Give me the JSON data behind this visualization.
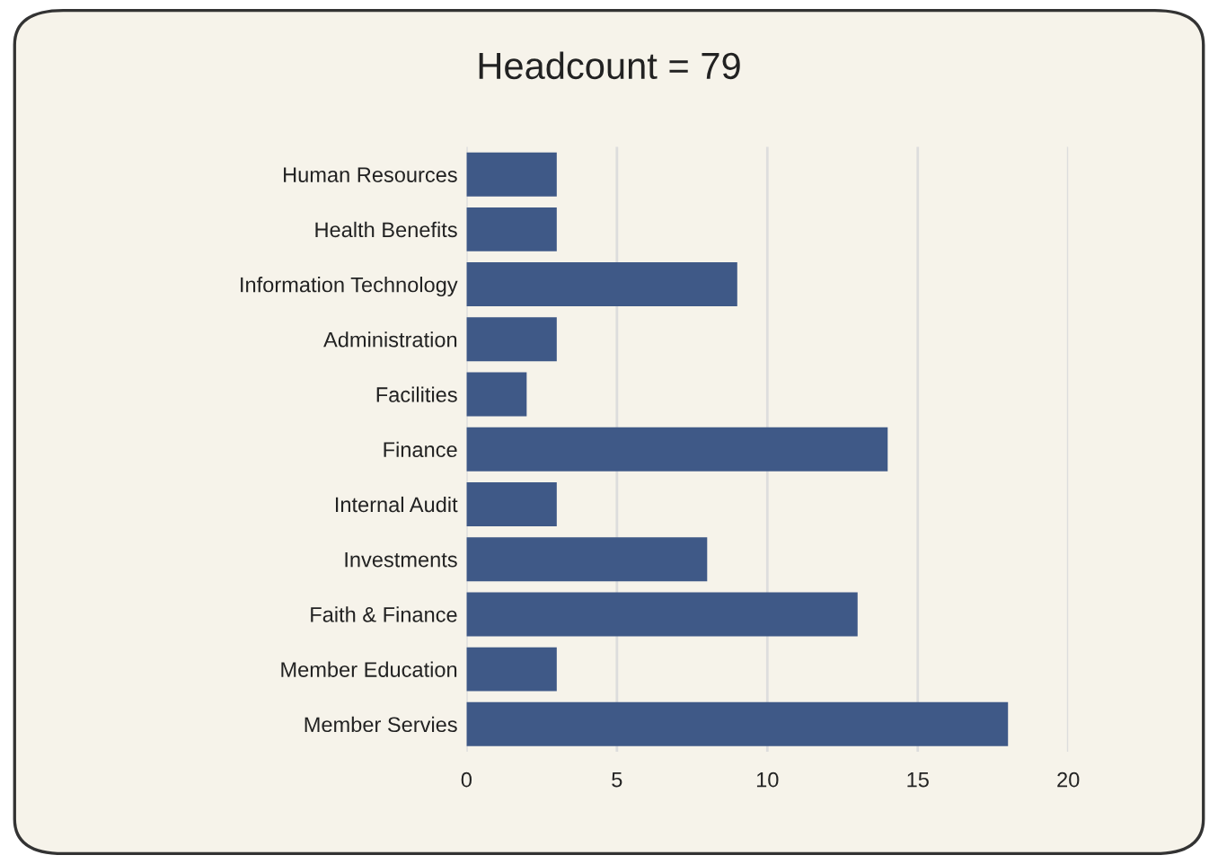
{
  "chart_data": {
    "type": "bar",
    "orientation": "horizontal",
    "title": "Headcount = 79",
    "categories": [
      "Human Resources",
      "Health Benefits",
      "Information Technology",
      "Administration",
      "Facilities",
      "Finance",
      "Internal Audit",
      "Investments",
      "Faith & Finance",
      "Member Education",
      "Member Servies"
    ],
    "values": [
      3,
      3,
      9,
      3,
      2,
      14,
      3,
      8,
      13,
      3,
      18
    ],
    "color": "#3f5987",
    "xlim": [
      0,
      20
    ],
    "xticks": [
      0,
      5,
      10,
      15,
      20
    ],
    "grid": "x",
    "legend": false
  }
}
